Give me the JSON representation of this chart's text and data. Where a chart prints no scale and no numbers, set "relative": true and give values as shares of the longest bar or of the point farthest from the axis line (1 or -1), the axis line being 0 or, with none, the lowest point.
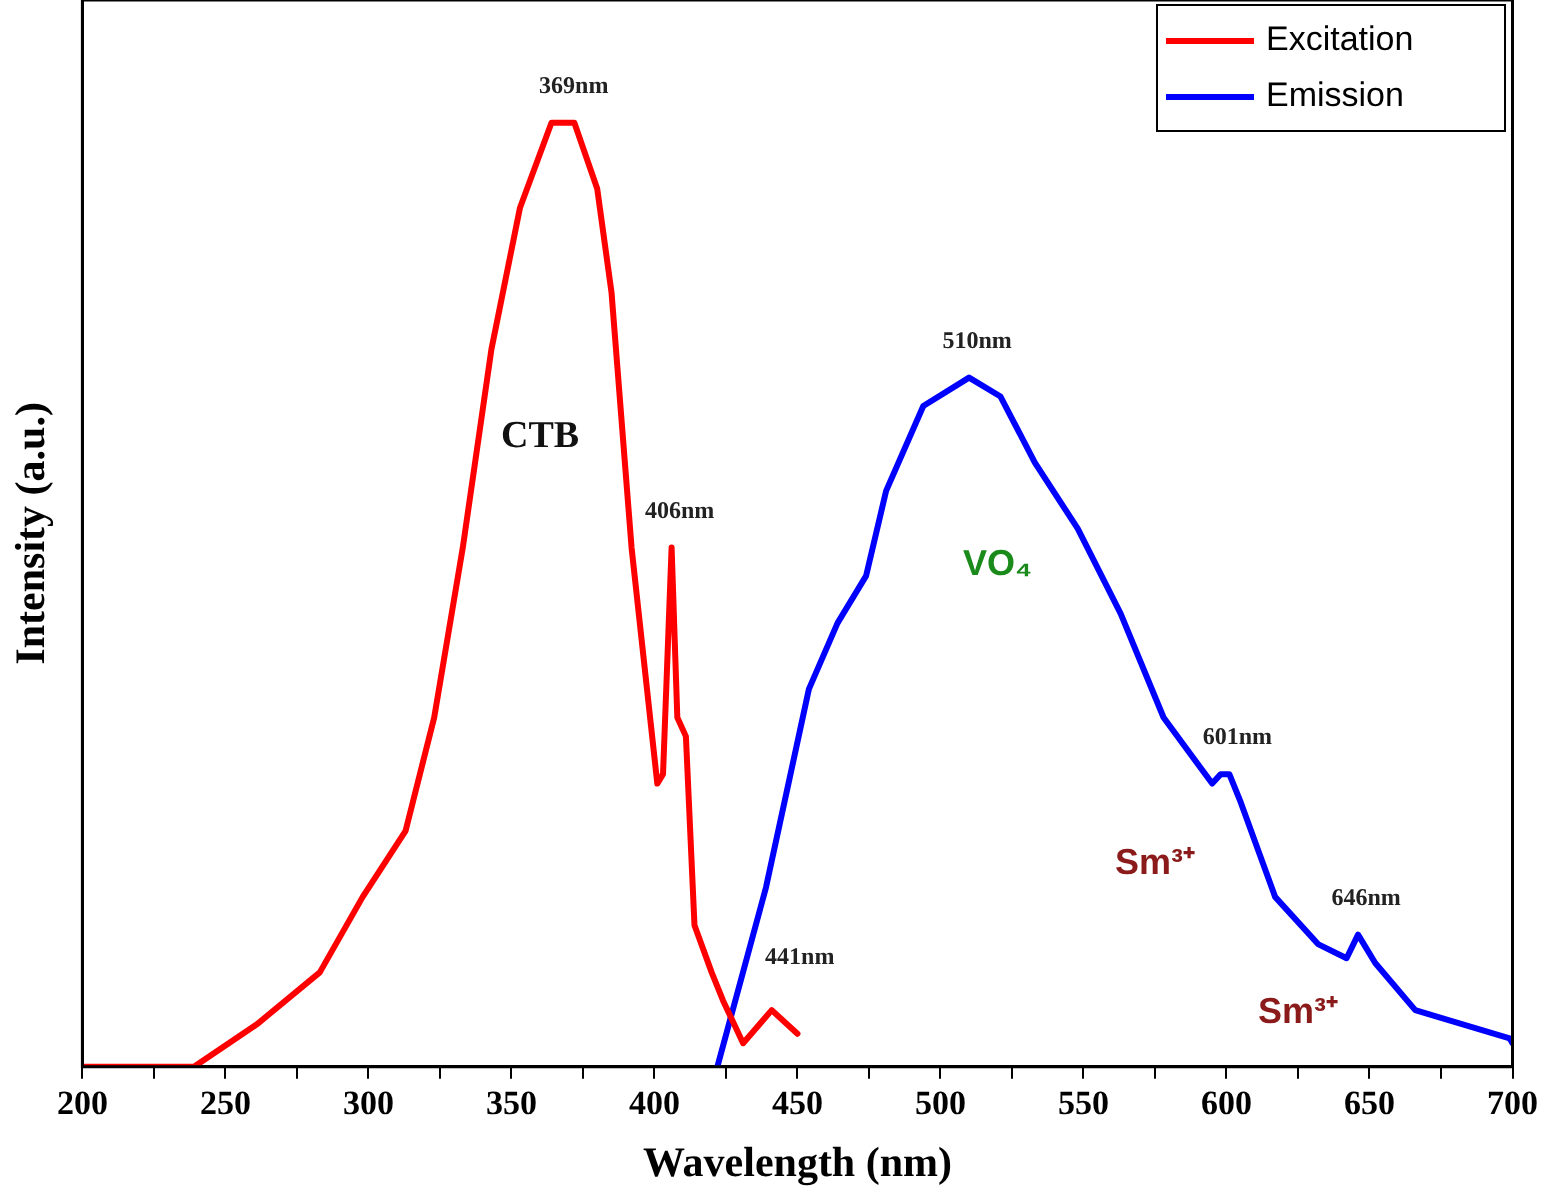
{
  "chart_data": {
    "type": "line",
    "xlabel": "Wavelength (nm)",
    "ylabel": "Intensity (a.u.)",
    "relative": true,
    "xlim": [
      200,
      700
    ],
    "xticks": [
      200,
      {
        "value": 225,
        "label": null
      },
      250,
      {
        "value": 275,
        "label": null
      },
      300,
      {
        "value": 325,
        "label": null
      },
      350,
      {
        "value": 375,
        "label": null
      },
      400,
      {
        "value": 425,
        "label": null
      },
      450,
      {
        "value": 475,
        "label": null
      },
      500,
      {
        "value": 525,
        "label": null
      },
      550,
      {
        "value": 575,
        "label": null
      },
      600,
      {
        "value": 625,
        "label": null
      },
      650,
      {
        "value": 675,
        "label": null
      },
      700
    ],
    "legend": "top right",
    "grid": false,
    "marker": "none",
    "line_style": "solid",
    "series": [
      {
        "name": "Excitation",
        "color": "#ff0000",
        "x": [
          200,
          239,
          261,
          283,
          298,
          313,
          323,
          333,
          343,
          353,
          364,
          369,
          372,
          380,
          385,
          392,
          401,
          403,
          406,
          408,
          411,
          414,
          420,
          424,
          431,
          441,
          450
        ],
        "values": [
          0,
          0,
          0.045,
          0.1,
          0.18,
          0.25,
          0.37,
          0.55,
          0.76,
          0.91,
          1.0,
          1.0,
          1.0,
          0.93,
          0.82,
          0.55,
          0.3,
          0.31,
          0.55,
          0.37,
          0.35,
          0.15,
          0.1,
          0.07,
          0.025,
          0.06,
          0.035
        ]
      },
      {
        "name": "Emission",
        "color": "#0000ff",
        "x": [
          422,
          439,
          454,
          464,
          474,
          481,
          494,
          510,
          521,
          533,
          548,
          563,
          578,
          595,
          598,
          601,
          605,
          617,
          632,
          642,
          646,
          652,
          666,
          699,
          700
        ],
        "values": [
          0,
          0.19,
          0.4,
          0.47,
          0.52,
          0.61,
          0.7,
          0.73,
          0.71,
          0.64,
          0.57,
          0.48,
          0.37,
          0.3,
          0.31,
          0.31,
          0.28,
          0.18,
          0.13,
          0.115,
          0.14,
          0.11,
          0.06,
          0.03,
          0.025
        ]
      }
    ],
    "annotations": [
      {
        "text": "369nm",
        "x": 369,
        "y": 1.0
      },
      {
        "text": "406nm",
        "x": 406,
        "y": 0.55
      },
      {
        "text": "441nm",
        "x": 441,
        "y": 0.06
      },
      {
        "text": "510nm",
        "x": 510,
        "y": 0.73
      },
      {
        "text": "601nm",
        "x": 601,
        "y": 0.31
      },
      {
        "text": "646nm",
        "x": 646,
        "y": 0.14
      },
      "CTB",
      "VO₄",
      "Sm³⁺",
      "Sm³⁺"
    ]
  }
}
